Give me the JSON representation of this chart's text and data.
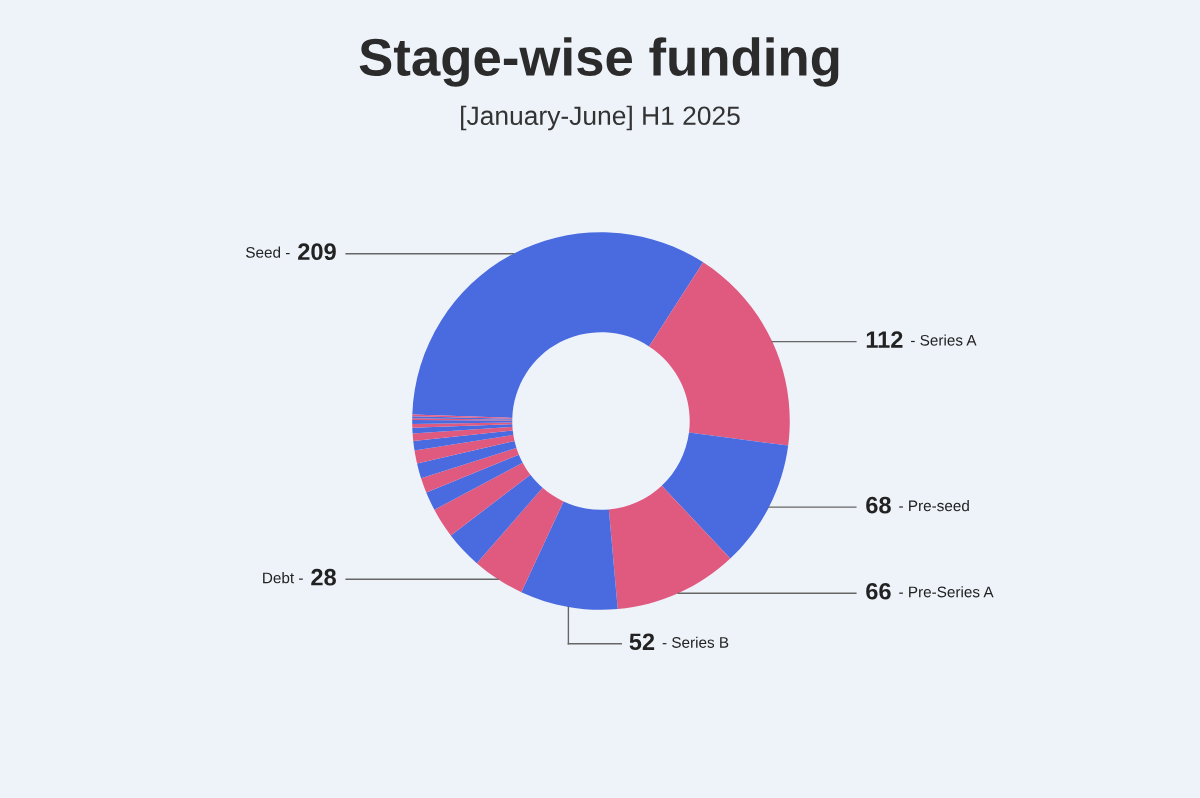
{
  "chart_data": {
    "type": "donut",
    "title": "Stage-wise funding",
    "subtitle": "[January-June] H1 2025",
    "categories": [
      "Seed -",
      "- Series A",
      "- Pre-seed",
      "- Pre-Series A",
      "- Series B",
      "Debt -",
      null,
      null,
      null,
      null,
      null,
      null,
      null,
      null,
      null,
      null,
      null,
      null,
      null,
      null
    ],
    "values": [
      209,
      112,
      68,
      66,
      52,
      28,
      20,
      16,
      10,
      8,
      8,
      7,
      5,
      4,
      3,
      2,
      2,
      1,
      1,
      1
    ],
    "value_labels": [
      "209",
      "112",
      "68",
      "66",
      "52",
      "28",
      null,
      null,
      null,
      null,
      null,
      null,
      null,
      null,
      null,
      null,
      null,
      null,
      null,
      null
    ],
    "colors": [
      "#4a6ae0",
      "#e05a80",
      "#4a6ae0",
      "#e05a80",
      "#4a6ae0",
      "#e05a80",
      "#4a6ae0",
      "#e05a80",
      "#4a6ae0",
      "#e05a80",
      "#4a6ae0",
      "#e05a80",
      "#4a6ae0",
      "#e05a80",
      "#4a6ae0",
      "#e05a80",
      "#4a6ae0",
      "#e05a80",
      "#4a6ae0",
      "#e05a80"
    ]
  }
}
